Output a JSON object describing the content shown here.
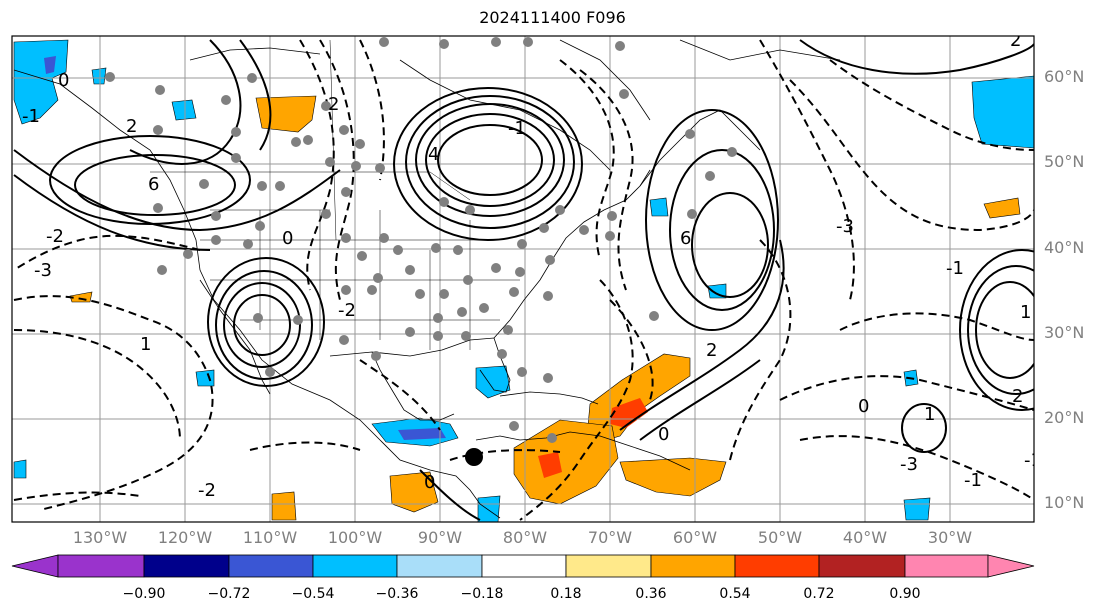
{
  "title": "2024111400 F096",
  "lat_labels": [
    "60°N",
    "50°N",
    "40°N",
    "30°N",
    "20°N",
    "10°N"
  ],
  "lon_labels": [
    "130°W",
    "120°W",
    "110°W",
    "100°W",
    "90°W",
    "80°W",
    "70°W",
    "60°W",
    "50°W",
    "40°W",
    "30°W"
  ],
  "colorbar": {
    "ticks": [
      "−0.90",
      "−0.72",
      "−0.54",
      "−0.36",
      "−0.18",
      "0.18",
      "0.36",
      "0.54",
      "0.72",
      "0.90"
    ],
    "colors": [
      "#9a33cc",
      "#00008b",
      "#3a56d4",
      "#00bfff",
      "#a9def9",
      "#ffffff",
      "#ffe98a",
      "#ffa500",
      "#ff3d00",
      "#b22222",
      "#ff85b0"
    ]
  },
  "contour_labels": [
    "0",
    "2",
    "-1",
    "-2",
    "-3",
    "1",
    "6",
    "4",
    "-1",
    "2",
    "-2",
    "0",
    "-3",
    "2",
    "0",
    "6",
    "-1",
    "-3",
    "2",
    "0",
    "1",
    "-1",
    "0",
    "2",
    "1",
    "-2",
    "-1"
  ]
}
